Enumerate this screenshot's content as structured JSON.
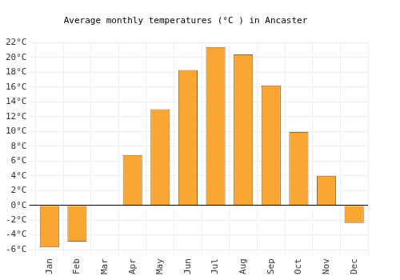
{
  "chart_data": {
    "type": "bar",
    "title": "Average monthly temperatures (°C ) in Ancaster",
    "categories": [
      "Jan",
      "Feb",
      "Mar",
      "Apr",
      "May",
      "Jun",
      "Jul",
      "Aug",
      "Sep",
      "Oct",
      "Nov",
      "Dec"
    ],
    "values": [
      -5.7,
      -4.9,
      0.1,
      6.8,
      13.0,
      18.3,
      21.4,
      20.4,
      16.2,
      9.9,
      4.0,
      -2.4
    ],
    "color": "#fba533",
    "ylim": [
      -6,
      22
    ],
    "yticks": [
      {
        "value": -6,
        "label": "-6°C"
      },
      {
        "value": -4,
        "label": "-4°C"
      },
      {
        "value": -2,
        "label": "-2°C"
      },
      {
        "value": 0,
        "label": "0°C"
      },
      {
        "value": 2,
        "label": "2°C"
      },
      {
        "value": 4,
        "label": "4°C"
      },
      {
        "value": 6,
        "label": "6°C"
      },
      {
        "value": 8,
        "label": "8°C"
      },
      {
        "value": 10,
        "label": "10°C"
      },
      {
        "value": 12,
        "label": "12°C"
      },
      {
        "value": 14,
        "label": "14°C"
      },
      {
        "value": 16,
        "label": "16°C"
      },
      {
        "value": 18,
        "label": "18°C"
      },
      {
        "value": 20,
        "label": "20°C"
      },
      {
        "value": 22,
        "label": "22°C"
      }
    ],
    "grid": true
  }
}
